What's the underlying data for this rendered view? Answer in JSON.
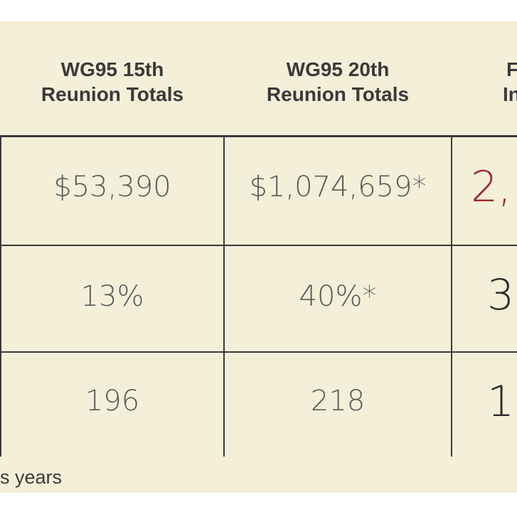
{
  "table": {
    "headers": [
      [
        "WG95 15th",
        "Reunion Totals"
      ],
      [
        "WG95 20th",
        "Reunion Totals"
      ],
      [
        "F",
        "In"
      ]
    ],
    "rows": [
      [
        "$53,390",
        "$1,074,659*",
        "2,"
      ],
      [
        "13%",
        "40%*",
        "3"
      ],
      [
        "196",
        "218",
        "1"
      ]
    ],
    "footnote": "s years"
  }
}
